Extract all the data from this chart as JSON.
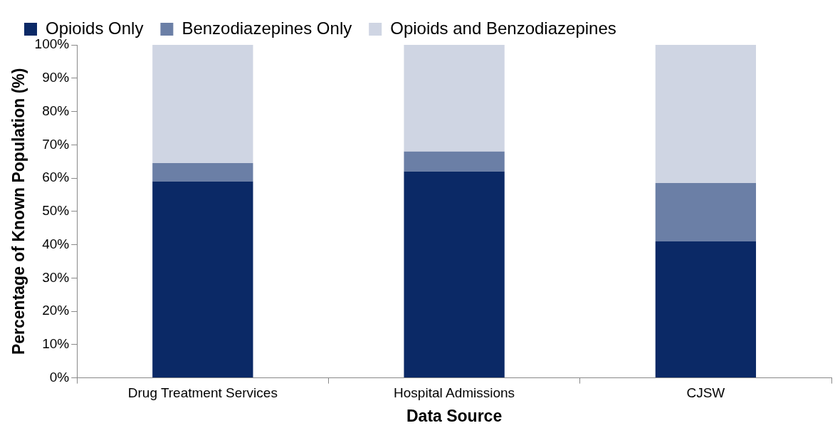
{
  "chart_data": {
    "type": "bar",
    "stacked": true,
    "xlabel": "Data Source",
    "ylabel": "Percentage of Known Population (%)",
    "categories": [
      "Drug Treatment Services",
      "Hospital Admissions",
      "CJSW"
    ],
    "series": [
      {
        "name": "Opioids Only",
        "color": "#0b2966",
        "values": [
          59,
          62,
          41
        ]
      },
      {
        "name": "Benzodiazepines Only",
        "color": "#6b7fa6",
        "values": [
          5.5,
          6,
          17.5
        ]
      },
      {
        "name": "Opioids and Benzodiazepines",
        "color": "#cfd5e3",
        "values": [
          35.5,
          32,
          41.5
        ]
      }
    ],
    "ylim": [
      0,
      100
    ],
    "yticks": [
      {
        "value": 0,
        "label": "0%"
      },
      {
        "value": 10,
        "label": "10%"
      },
      {
        "value": 20,
        "label": "20%"
      },
      {
        "value": 30,
        "label": "30%"
      },
      {
        "value": 40,
        "label": "40%"
      },
      {
        "value": 50,
        "label": "50%"
      },
      {
        "value": 60,
        "label": "60%"
      },
      {
        "value": 70,
        "label": "70%"
      },
      {
        "value": 80,
        "label": "80%"
      },
      {
        "value": 90,
        "label": "90%"
      },
      {
        "value": 100,
        "label": "100%"
      }
    ],
    "grid": false,
    "legend": "top"
  }
}
